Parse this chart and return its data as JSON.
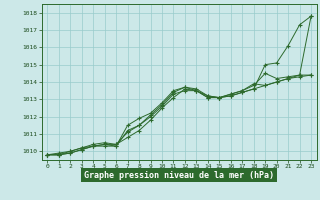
{
  "x": [
    0,
    1,
    2,
    3,
    4,
    5,
    6,
    7,
    8,
    9,
    10,
    11,
    12,
    13,
    14,
    15,
    16,
    17,
    18,
    19,
    20,
    21,
    22,
    23
  ],
  "series": [
    [
      1009.8,
      1009.8,
      1009.9,
      1010.1,
      1010.3,
      1010.4,
      1010.3,
      1011.5,
      1011.9,
      1012.2,
      1012.8,
      1013.5,
      1013.7,
      1013.6,
      1013.2,
      1013.1,
      1013.2,
      1013.4,
      1013.6,
      1015.0,
      1015.1,
      1016.1,
      1017.3,
      1017.8
    ],
    [
      1009.8,
      1009.8,
      1010.0,
      1010.2,
      1010.3,
      1010.4,
      1010.4,
      1011.1,
      1011.5,
      1012.1,
      1012.7,
      1013.4,
      1013.7,
      1013.5,
      1013.1,
      1013.1,
      1013.3,
      1013.5,
      1013.8,
      1014.5,
      1014.2,
      1014.3,
      1014.4,
      1017.8
    ],
    [
      1009.8,
      1009.9,
      1010.0,
      1010.2,
      1010.4,
      1010.5,
      1010.4,
      1010.8,
      1011.2,
      1011.8,
      1012.5,
      1013.1,
      1013.6,
      1013.5,
      1013.1,
      1013.1,
      1013.3,
      1013.5,
      1013.9,
      1013.8,
      1014.0,
      1014.2,
      1014.4,
      1014.4
    ],
    [
      1009.8,
      1009.8,
      1009.9,
      1010.1,
      1010.3,
      1010.3,
      1010.3,
      1011.2,
      1011.5,
      1012.0,
      1012.6,
      1013.3,
      1013.5,
      1013.5,
      1013.2,
      1013.1,
      1013.2,
      1013.4,
      1013.6,
      1013.8,
      1014.0,
      1014.2,
      1014.3,
      1014.4
    ]
  ],
  "line_color": "#2d6a2d",
  "bg_color": "#cce8e8",
  "grid_color": "#99cccc",
  "axis_label_color": "#1a4a1a",
  "xlabel": "Graphe pression niveau de la mer (hPa)",
  "ylim": [
    1009.5,
    1018.5
  ],
  "xlim": [
    -0.5,
    23.5
  ],
  "yticks": [
    1010,
    1011,
    1012,
    1013,
    1014,
    1015,
    1016,
    1017,
    1018
  ],
  "xticks": [
    0,
    1,
    2,
    3,
    4,
    5,
    6,
    7,
    8,
    9,
    10,
    11,
    12,
    13,
    14,
    15,
    16,
    17,
    18,
    19,
    20,
    21,
    22,
    23
  ],
  "fig_width": 3.2,
  "fig_height": 2.0,
  "dpi": 100
}
